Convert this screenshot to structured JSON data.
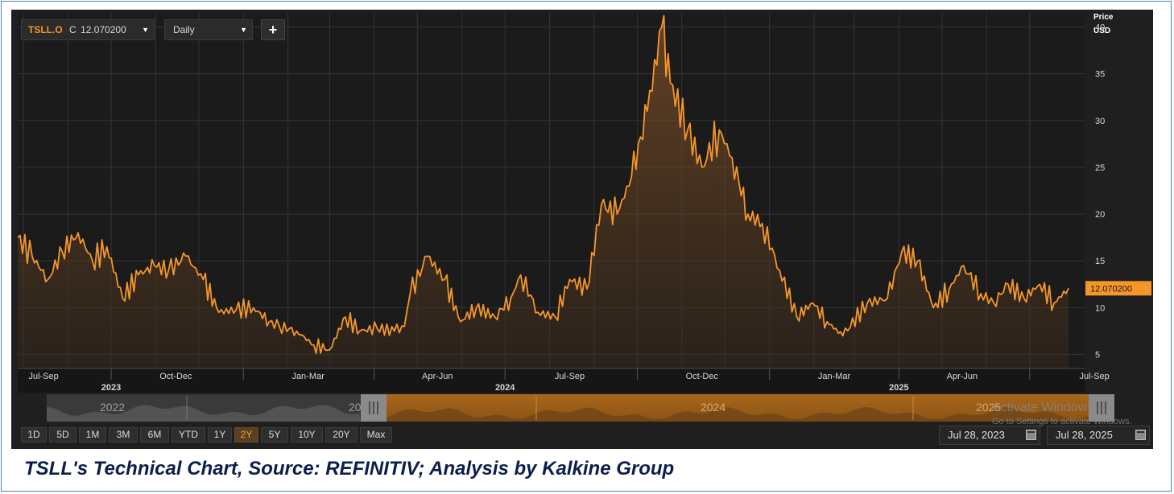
{
  "caption": "TSLL's Technical Chart, Source: REFINITIV; Analysis by Kalkine Group",
  "toolbar": {
    "symbol": "TSLL.O",
    "close_prefix": "C",
    "close_value": "12.070200",
    "interval": "Daily",
    "add_label": "+"
  },
  "colors": {
    "accent": "#f5962a",
    "background": "#1f1f1f",
    "grid": "#383838",
    "active_range": "#5a4022"
  },
  "range_buttons": [
    "1D",
    "5D",
    "1M",
    "3M",
    "6M",
    "YTD",
    "1Y",
    "2Y",
    "5Y",
    "10Y",
    "20Y",
    "Max"
  ],
  "active_range": "2Y",
  "date_from": "Jul 28, 2023",
  "date_to": "Jul 28, 2025",
  "navigator": {
    "labels": [
      "2022",
      "20",
      "2024",
      "2025"
    ]
  },
  "watermark": {
    "line1": "Activate Windows",
    "line2": "Go to Settings to activate Windows."
  },
  "chart_data": {
    "type": "area",
    "axis_title": "Price",
    "unit": "USD",
    "last_value_label": "12.070200",
    "ylim": [
      3.5,
      41.5
    ],
    "y_ticks": [
      5,
      10,
      15,
      20,
      25,
      30,
      35,
      40
    ],
    "x_start": "2023-07-28",
    "x_end": "2025-07-28",
    "quarter_labels": [
      {
        "label": "Jul-Sep",
        "date": "2023-08-15"
      },
      {
        "label": "Oct-Dec",
        "date": "2023-11-15"
      },
      {
        "label": "Jan-Mar",
        "date": "2024-02-15"
      },
      {
        "label": "Apr-Jun",
        "date": "2024-05-15"
      },
      {
        "label": "Jul-Sep",
        "date": "2024-08-15"
      },
      {
        "label": "Oct-Dec",
        "date": "2024-11-15"
      },
      {
        "label": "Jan-Mar",
        "date": "2025-02-15"
      },
      {
        "label": "Apr-Jun",
        "date": "2025-05-15"
      },
      {
        "label": "Jul-Sep",
        "date": "2025-08-15"
      }
    ],
    "year_labels": [
      {
        "label": "2023",
        "date": "2023-10-01"
      },
      {
        "label": "2024",
        "date": "2024-07-01"
      },
      {
        "label": "2025",
        "date": "2025-04-01"
      }
    ],
    "series": [
      {
        "x": [
          "2023-07-28",
          "2023-08-07",
          "2023-08-18",
          "2023-08-28",
          "2023-09-08",
          "2023-09-18",
          "2023-09-28",
          "2023-10-09",
          "2023-10-20",
          "2023-10-31",
          "2023-11-10",
          "2023-11-22",
          "2023-12-04",
          "2023-12-15",
          "2023-12-27",
          "2024-01-08",
          "2024-01-19",
          "2024-01-26",
          "2024-02-07",
          "2024-02-19",
          "2024-03-01",
          "2024-03-12",
          "2024-03-22",
          "2024-04-03",
          "2024-04-15",
          "2024-04-22",
          "2024-04-26",
          "2024-05-08",
          "2024-05-20",
          "2024-05-31",
          "2024-06-11",
          "2024-06-24",
          "2024-07-05",
          "2024-07-12",
          "2024-07-24",
          "2024-08-05",
          "2024-08-15",
          "2024-08-27",
          "2024-09-06",
          "2024-09-17",
          "2024-09-27",
          "2024-10-08",
          "2024-10-18",
          "2024-10-24",
          "2024-11-05",
          "2024-11-15",
          "2024-11-27",
          "2024-12-06",
          "2024-12-17",
          "2024-12-27",
          "2025-01-08",
          "2025-01-20",
          "2025-01-31",
          "2025-02-10",
          "2025-02-21",
          "2025-03-10",
          "2025-03-24",
          "2025-04-03",
          "2025-04-14",
          "2025-04-25",
          "2025-05-06",
          "2025-05-16",
          "2025-05-28",
          "2025-06-06",
          "2025-06-16",
          "2025-06-27",
          "2025-07-08",
          "2025-07-18",
          "2025-07-28"
        ],
        "y": [
          17.5,
          15.5,
          13.0,
          16.0,
          18.0,
          15.0,
          16.5,
          11.0,
          13.5,
          14.5,
          14.0,
          15.5,
          13.0,
          9.5,
          9.8,
          10.0,
          8.5,
          8.0,
          7.5,
          6.0,
          5.5,
          9.0,
          7.5,
          7.8,
          7.5,
          8.0,
          11.5,
          15.5,
          13.0,
          8.5,
          10.0,
          9.0,
          11.0,
          13.5,
          9.5,
          9.0,
          13.0,
          12.0,
          21.0,
          20.0,
          24.0,
          31.0,
          40.0,
          34.0,
          29.0,
          25.0,
          29.0,
          26.0,
          20.0,
          19.0,
          14.0,
          9.0,
          10.5,
          8.5,
          7.0,
          10.5,
          11.0,
          16.0,
          15.0,
          10.0,
          12.0,
          14.5,
          11.5,
          10.5,
          12.5,
          11.0,
          12.5,
          10.5,
          12.07
        ]
      }
    ]
  }
}
